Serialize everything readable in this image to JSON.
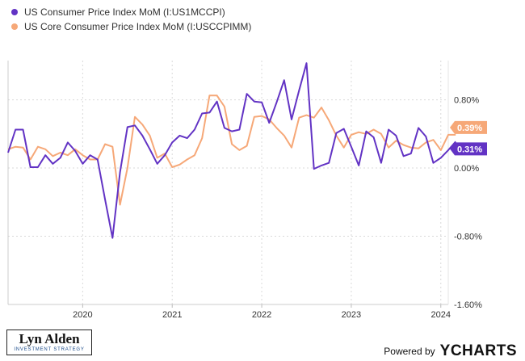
{
  "chart_data": {
    "type": "line",
    "x_start": "2019-03",
    "x_end": "2024-02",
    "xticks": [
      "2020",
      "2021",
      "2022",
      "2023",
      "2024"
    ],
    "yticks": [
      {
        "value": 0.8,
        "label": "0.80%"
      },
      {
        "value": 0.0,
        "label": "0.00%"
      },
      {
        "value": -0.8,
        "label": "-0.80%"
      },
      {
        "value": -1.6,
        "label": "-1.60%"
      }
    ],
    "ylim": [
      -1.6,
      1.26
    ],
    "grid": "dashed",
    "legend_position": "top-left",
    "series": [
      {
        "name": "US Consumer Price Index MoM (I:US1MCCPI)",
        "color": "#6233c4",
        "end_label": "0.31%",
        "values": [
          0.18,
          0.45,
          0.45,
          0.01,
          0.01,
          0.15,
          0.05,
          0.12,
          0.3,
          0.2,
          0.05,
          0.15,
          0.1,
          -0.37,
          -0.82,
          -0.05,
          0.48,
          0.5,
          0.38,
          0.22,
          0.05,
          0.15,
          0.3,
          0.38,
          0.35,
          0.45,
          0.64,
          0.65,
          0.78,
          0.47,
          0.43,
          0.45,
          0.87,
          0.78,
          0.77,
          0.53,
          0.77,
          1.03,
          0.57,
          0.91,
          1.23,
          -0.01,
          0.03,
          0.06,
          0.41,
          0.46,
          0.25,
          0.03,
          0.43,
          0.36,
          0.06,
          0.45,
          0.38,
          0.14,
          0.17,
          0.47,
          0.37,
          0.06,
          0.12,
          0.21,
          0.31
        ]
      },
      {
        "name": "US Core Consumer Price Index MoM (I:USCCPIMM)",
        "color": "#f6a878",
        "end_label": "0.39%",
        "values": [
          0.22,
          0.25,
          0.24,
          0.1,
          0.25,
          0.22,
          0.14,
          0.18,
          0.15,
          0.22,
          0.15,
          0.1,
          0.1,
          0.28,
          0.25,
          -0.43,
          0.0,
          0.6,
          0.51,
          0.38,
          0.12,
          0.17,
          0.01,
          0.04,
          0.1,
          0.15,
          0.35,
          0.85,
          0.85,
          0.72,
          0.28,
          0.21,
          0.26,
          0.6,
          0.61,
          0.57,
          0.47,
          0.38,
          0.24,
          0.59,
          0.62,
          0.59,
          0.71,
          0.56,
          0.38,
          0.24,
          0.39,
          0.42,
          0.4,
          0.45,
          0.4,
          0.24,
          0.32,
          0.27,
          0.24,
          0.23,
          0.3,
          0.33,
          0.21,
          0.39,
          0.39
        ]
      }
    ]
  },
  "branding": {
    "author_name": "Lyn Alden",
    "author_tagline": "INVESTMENT STRATEGY",
    "powered_by": "Powered by",
    "provider": "YCHARTS"
  }
}
